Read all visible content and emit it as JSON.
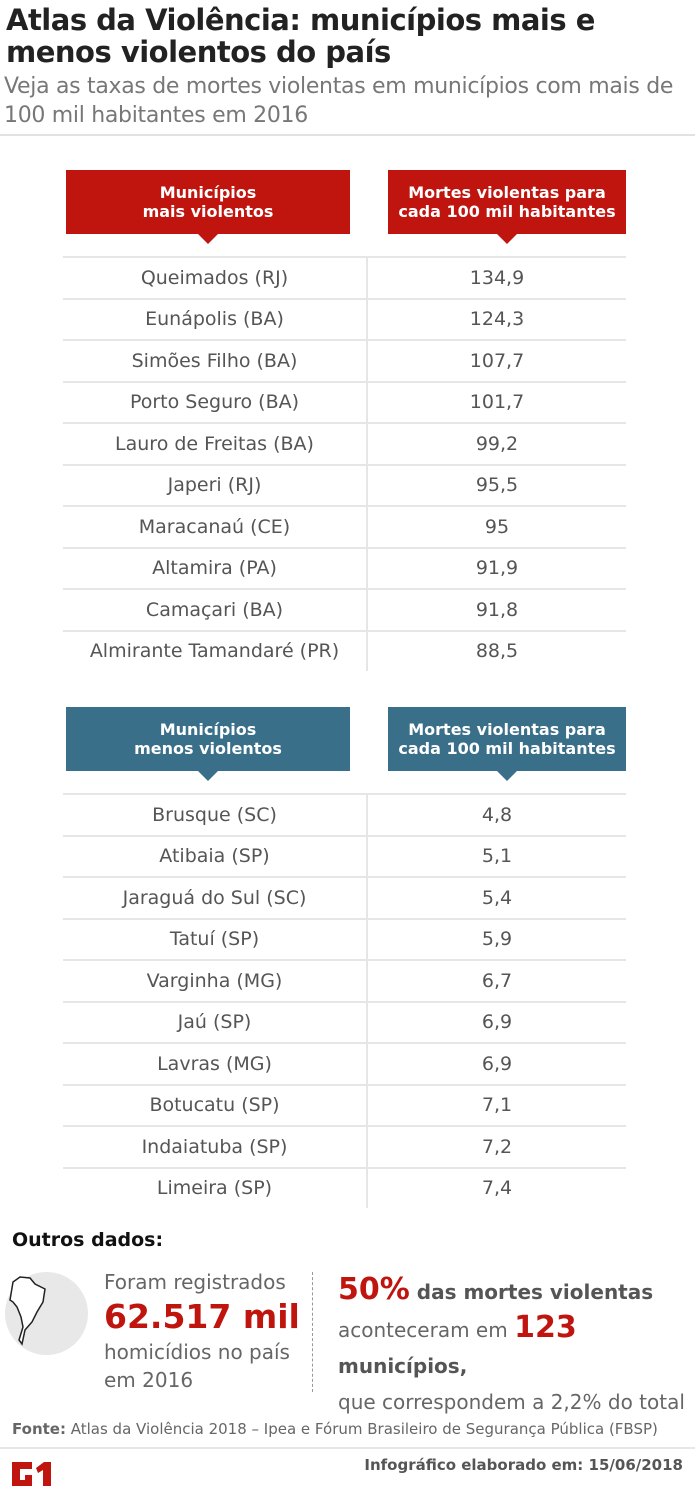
{
  "header": {
    "title": "Atlas da Violência: municípios mais e menos violentos do país",
    "subtitle": "Veja as taxas de mortes violentas em municípios com mais de 100 mil habitantes em 2016"
  },
  "colors": {
    "red": "#c0150f",
    "blue": "#3a6f8a"
  },
  "chart_data": [
    {
      "type": "table",
      "columns": [
        "Municípios\nmais violentos",
        "Mortes violentas para\ncada 100 mil habitantes"
      ],
      "rows": [
        [
          "Queimados (RJ)",
          "134,9"
        ],
        [
          "Eunápolis (BA)",
          "124,3"
        ],
        [
          "Simões Filho (BA)",
          "107,7"
        ],
        [
          "Porto Seguro (BA)",
          "101,7"
        ],
        [
          "Lauro de Freitas (BA)",
          "99,2"
        ],
        [
          "Japeri (RJ)",
          "95,5"
        ],
        [
          "Maracanaú (CE)",
          "95"
        ],
        [
          "Altamira (PA)",
          "91,9"
        ],
        [
          "Camaçari (BA)",
          "91,8"
        ],
        [
          "Almirante Tamandaré (PR)",
          "88,5"
        ]
      ]
    },
    {
      "type": "table",
      "columns": [
        "Municípios\nmenos violentos",
        "Mortes violentas para\ncada 100 mil habitantes"
      ],
      "rows": [
        [
          "Brusque (SC)",
          "4,8"
        ],
        [
          "Atibaia (SP)",
          "5,1"
        ],
        [
          "Jaraguá do Sul (SC)",
          "5,4"
        ],
        [
          "Tatuí (SP)",
          "5,9"
        ],
        [
          "Varginha (MG)",
          "6,7"
        ],
        [
          "Jaú (SP)",
          "6,9"
        ],
        [
          "Lavras (MG)",
          "6,9"
        ],
        [
          "Botucatu (SP)",
          "7,1"
        ],
        [
          "Indaiatuba (SP)",
          "7,2"
        ],
        [
          "Limeira (SP)",
          "7,4"
        ]
      ]
    }
  ],
  "outros": {
    "title": "Outros dados:",
    "left": {
      "l1": "Foram registrados",
      "big": "62.517 mil",
      "l3": "homicídios no país",
      "l4": "em 2016"
    },
    "right": {
      "pct": "50%",
      "t1": " das mortes violentas",
      "t2": "aconteceram em ",
      "num": "123",
      "t3": " municípios,",
      "t4": "que correspondem a  2,2% do total"
    }
  },
  "footer": {
    "fonte_label": "Fonte:",
    "fonte": " Atlas da Violência 2018 – Ipea e Fórum Brasileiro de Segurança Pública (FBSP)",
    "logo": "G1",
    "date": "Infográfico elaborado em: 15/06/2018"
  }
}
